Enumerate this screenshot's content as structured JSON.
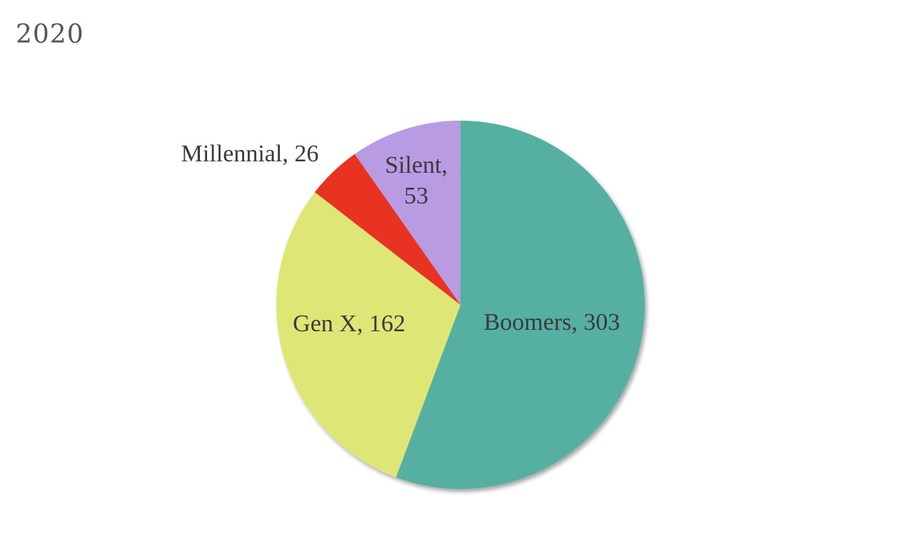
{
  "chart_data": {
    "type": "pie",
    "title": "2020",
    "slices": [
      {
        "label": "Boomers",
        "value": 303,
        "color": "#54B0A2",
        "label_text": "Boomers, 303"
      },
      {
        "label": "Gen X",
        "value": 162,
        "color": "#DEE775",
        "label_text": "Gen X, 162"
      },
      {
        "label": "Millennial",
        "value": 26,
        "color": "#E83323",
        "label_text": "Millennial, 26"
      },
      {
        "label": "Silent",
        "value": 53,
        "color": "#B89BE3",
        "label_lines": [
          "Silent,",
          "53"
        ]
      }
    ],
    "start": "12 o'clock, clockwise"
  }
}
